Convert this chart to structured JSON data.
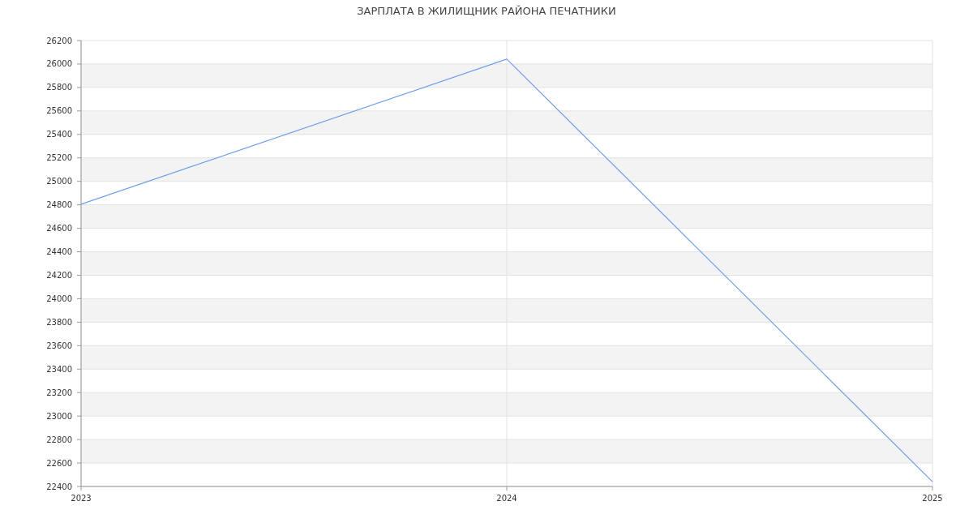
{
  "chart_data": {
    "type": "line",
    "title": "ЗАРПЛАТА В ЖИЛИЩНИК РАЙОНА ПЕЧАТНИКИ",
    "x": [
      2023,
      2024,
      2025
    ],
    "series": [
      {
        "color": "#6d9eeb",
        "values": [
          24805,
          26042,
          22441
        ]
      }
    ],
    "xlim": [
      2023,
      2025
    ],
    "xticks": [
      2023,
      2024,
      2025
    ],
    "ylim": [
      22400,
      26200
    ],
    "yticks": [
      22400,
      22600,
      22800,
      23000,
      23200,
      23400,
      23600,
      23800,
      24000,
      24200,
      24400,
      24600,
      24800,
      25000,
      25200,
      25400,
      25600,
      25800,
      26000,
      26200
    ],
    "grid": true,
    "marker": "none",
    "line_style": "solid"
  }
}
